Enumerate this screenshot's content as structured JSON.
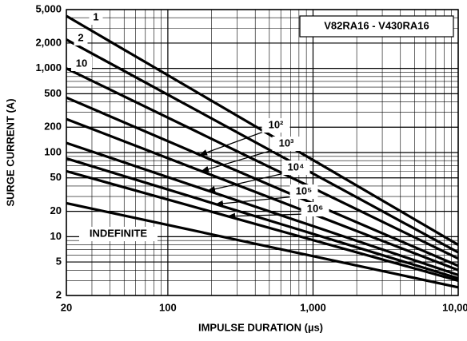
{
  "chart_data": {
    "type": "line",
    "annotations": [
      "V82RA16 - V430RA16"
    ],
    "x_label": "IMPULSE DURATION (µs)",
    "y_label": "SURGE CURRENT (A)",
    "x": [
      20,
      10000
    ],
    "series": [
      {
        "name": "1",
        "color": "#000000",
        "values": [
          4200,
          8
        ]
      },
      {
        "name": "2",
        "color": "#000000",
        "values": [
          2200,
          6.5
        ]
      },
      {
        "name": "10",
        "color": "#000000",
        "values": [
          1000,
          5.5
        ]
      },
      {
        "name": "10²",
        "color": "#000000",
        "values": [
          450,
          4.5
        ]
      },
      {
        "name": "10³",
        "color": "#000000",
        "values": [
          250,
          4
        ]
      },
      {
        "name": "10⁴",
        "color": "#000000",
        "values": [
          130,
          3.5
        ]
      },
      {
        "name": "10⁵",
        "color": "#000000",
        "values": [
          85,
          3.2
        ]
      },
      {
        "name": "10⁶",
        "color": "#000000",
        "values": [
          60,
          3
        ]
      },
      {
        "name": "INDEFINITE",
        "color": "#000000",
        "values": [
          25,
          2.5
        ]
      }
    ],
    "xlim": [
      20,
      10000
    ],
    "ylim": [
      2,
      5000
    ],
    "xscale": "log",
    "yscale": "log",
    "xticks": [
      20,
      100,
      {
        "value": 1000,
        "label": "1,000"
      },
      {
        "value": 10000,
        "label": "10,000"
      }
    ],
    "yticks": [
      2,
      5,
      10,
      20,
      50,
      100,
      200,
      500,
      {
        "value": 1000,
        "label": "1,000"
      },
      {
        "value": 2000,
        "label": "2,000"
      },
      {
        "value": 5000,
        "label": "5,000"
      }
    ],
    "grid": true
  }
}
